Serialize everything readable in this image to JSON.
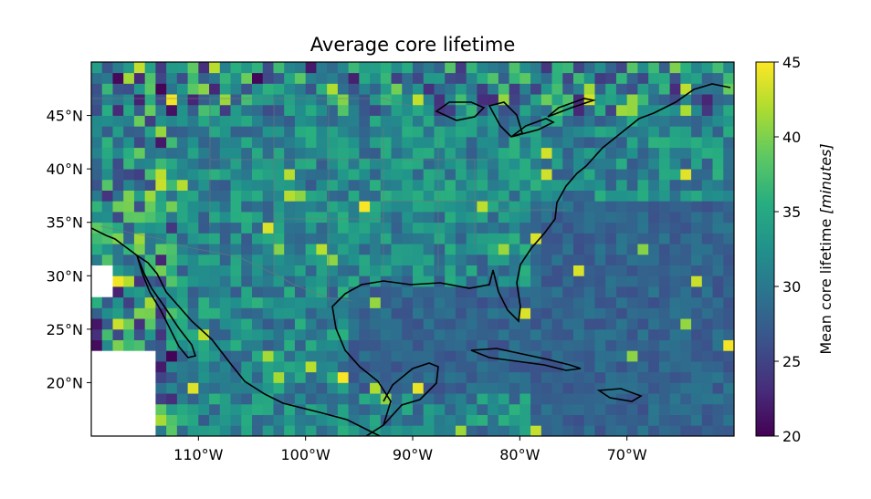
{
  "chart_data": {
    "type": "heatmap",
    "title": "Average core lifetime",
    "x_ticks": [
      "110°W",
      "100°W",
      "90°W",
      "80°W",
      "70°W"
    ],
    "x_tick_values": [
      -110,
      -100,
      -90,
      -80,
      -70
    ],
    "y_ticks": [
      "45°N",
      "40°N",
      "35°N",
      "30°N",
      "25°N",
      "20°N"
    ],
    "y_tick_values": [
      45,
      40,
      35,
      30,
      25,
      20
    ],
    "xlim": [
      -120,
      -60
    ],
    "ylim": [
      15,
      50
    ],
    "colorbar": {
      "label_prefix": "Mean core lifetime ",
      "label_unit": "[minutes]",
      "ticks": [
        "45",
        "40",
        "35",
        "30",
        "25",
        "20"
      ],
      "tick_values": [
        45,
        40,
        35,
        30,
        25,
        20
      ],
      "range": [
        20,
        45
      ],
      "colormap": "viridis"
    },
    "grid": false,
    "cell_size_deg": 1,
    "overlays": [
      "coastlines",
      "state-borders",
      "country-borders"
    ]
  }
}
